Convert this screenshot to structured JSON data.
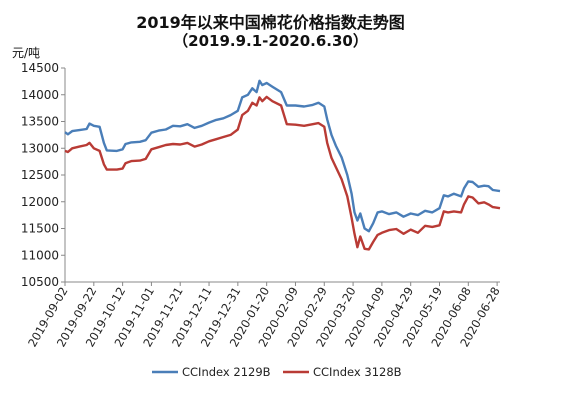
{
  "chart_data": {
    "type": "line",
    "title": "2019年以来中国棉花价格指数走势图",
    "subtitle": "（2019.9.1-2020.6.30）",
    "ylabel": "元/吨",
    "ylim": [
      10500,
      14500
    ],
    "yticks": [
      "10500",
      "11000",
      "11500",
      "12000",
      "12500",
      "13000",
      "13500",
      "14000",
      "14500"
    ],
    "xlim": [
      "2019-09-02",
      "2020-06-30"
    ],
    "xticks": [
      "2019-09-02",
      "2019-09-22",
      "2019-10-12",
      "2019-11-01",
      "2019-11-21",
      "2019-12-11",
      "2019-12-31",
      "2020-01-20",
      "2020-02-09",
      "2020-02-29",
      "2020-03-20",
      "2020-04-09",
      "2020-04-29",
      "2020-05-19",
      "2020-06-08",
      "2020-06-28"
    ],
    "legend_position": "bottom",
    "series": [
      {
        "name": "CCIndex 2129B",
        "color": "#4a7eb8",
        "points": [
          [
            "2019-09-02",
            13300
          ],
          [
            "2019-09-04",
            13260
          ],
          [
            "2019-09-07",
            13320
          ],
          [
            "2019-09-12",
            13340
          ],
          [
            "2019-09-17",
            13360
          ],
          [
            "2019-09-19",
            13460
          ],
          [
            "2019-09-22",
            13420
          ],
          [
            "2019-09-26",
            13400
          ],
          [
            "2019-09-29",
            13100
          ],
          [
            "2019-10-01",
            12960
          ],
          [
            "2019-10-08",
            12950
          ],
          [
            "2019-10-12",
            12980
          ],
          [
            "2019-10-14",
            13080
          ],
          [
            "2019-10-18",
            13110
          ],
          [
            "2019-10-24",
            13120
          ],
          [
            "2019-10-28",
            13150
          ],
          [
            "2019-11-01",
            13290
          ],
          [
            "2019-11-06",
            13330
          ],
          [
            "2019-11-11",
            13350
          ],
          [
            "2019-11-16",
            13420
          ],
          [
            "2019-11-21",
            13410
          ],
          [
            "2019-11-26",
            13450
          ],
          [
            "2019-12-01",
            13380
          ],
          [
            "2019-12-06",
            13420
          ],
          [
            "2019-12-11",
            13480
          ],
          [
            "2019-12-16",
            13530
          ],
          [
            "2019-12-21",
            13560
          ],
          [
            "2019-12-26",
            13620
          ],
          [
            "2019-12-31",
            13700
          ],
          [
            "2020-01-03",
            13950
          ],
          [
            "2020-01-07",
            14000
          ],
          [
            "2020-01-10",
            14120
          ],
          [
            "2020-01-13",
            14050
          ],
          [
            "2020-01-15",
            14260
          ],
          [
            "2020-01-17",
            14180
          ],
          [
            "2020-01-20",
            14220
          ],
          [
            "2020-01-24",
            14150
          ],
          [
            "2020-01-30",
            14050
          ],
          [
            "2020-02-03",
            13800
          ],
          [
            "2020-02-09",
            13800
          ],
          [
            "2020-02-15",
            13780
          ],
          [
            "2020-02-21",
            13810
          ],
          [
            "2020-02-25",
            13850
          ],
          [
            "2020-02-29",
            13780
          ],
          [
            "2020-03-02",
            13540
          ],
          [
            "2020-03-05",
            13250
          ],
          [
            "2020-03-08",
            13050
          ],
          [
            "2020-03-12",
            12830
          ],
          [
            "2020-03-16",
            12500
          ],
          [
            "2020-03-19",
            12150
          ],
          [
            "2020-03-21",
            11800
          ],
          [
            "2020-03-23",
            11650
          ],
          [
            "2020-03-25",
            11780
          ],
          [
            "2020-03-28",
            11500
          ],
          [
            "2020-03-31",
            11450
          ],
          [
            "2020-04-03",
            11600
          ],
          [
            "2020-04-06",
            11800
          ],
          [
            "2020-04-09",
            11820
          ],
          [
            "2020-04-14",
            11770
          ],
          [
            "2020-04-19",
            11800
          ],
          [
            "2020-04-24",
            11720
          ],
          [
            "2020-04-29",
            11780
          ],
          [
            "2020-05-04",
            11750
          ],
          [
            "2020-05-09",
            11830
          ],
          [
            "2020-05-14",
            11800
          ],
          [
            "2020-05-19",
            11880
          ],
          [
            "2020-05-22",
            12120
          ],
          [
            "2020-05-25",
            12100
          ],
          [
            "2020-05-29",
            12150
          ],
          [
            "2020-06-03",
            12100
          ],
          [
            "2020-06-05",
            12250
          ],
          [
            "2020-06-08",
            12380
          ],
          [
            "2020-06-11",
            12370
          ],
          [
            "2020-06-15",
            12280
          ],
          [
            "2020-06-19",
            12300
          ],
          [
            "2020-06-22",
            12290
          ],
          [
            "2020-06-25",
            12220
          ],
          [
            "2020-06-30",
            12200
          ]
        ]
      },
      {
        "name": "CCIndex 3128B",
        "color": "#b93b35",
        "points": [
          [
            "2019-09-02",
            12950
          ],
          [
            "2019-09-04",
            12930
          ],
          [
            "2019-09-07",
            13000
          ],
          [
            "2019-09-12",
            13030
          ],
          [
            "2019-09-17",
            13060
          ],
          [
            "2019-09-19",
            13100
          ],
          [
            "2019-09-22",
            13000
          ],
          [
            "2019-09-26",
            12950
          ],
          [
            "2019-09-29",
            12700
          ],
          [
            "2019-10-01",
            12600
          ],
          [
            "2019-10-08",
            12600
          ],
          [
            "2019-10-12",
            12620
          ],
          [
            "2019-10-14",
            12720
          ],
          [
            "2019-10-18",
            12760
          ],
          [
            "2019-10-24",
            12770
          ],
          [
            "2019-10-28",
            12800
          ],
          [
            "2019-11-01",
            12980
          ],
          [
            "2019-11-06",
            13020
          ],
          [
            "2019-11-11",
            13060
          ],
          [
            "2019-11-16",
            13080
          ],
          [
            "2019-11-21",
            13070
          ],
          [
            "2019-11-26",
            13100
          ],
          [
            "2019-12-01",
            13030
          ],
          [
            "2019-12-06",
            13070
          ],
          [
            "2019-12-11",
            13130
          ],
          [
            "2019-12-16",
            13170
          ],
          [
            "2019-12-21",
            13210
          ],
          [
            "2019-12-26",
            13250
          ],
          [
            "2019-12-31",
            13350
          ],
          [
            "2020-01-03",
            13620
          ],
          [
            "2020-01-07",
            13700
          ],
          [
            "2020-01-10",
            13850
          ],
          [
            "2020-01-13",
            13800
          ],
          [
            "2020-01-15",
            13950
          ],
          [
            "2020-01-17",
            13880
          ],
          [
            "2020-01-20",
            13960
          ],
          [
            "2020-01-24",
            13880
          ],
          [
            "2020-01-30",
            13800
          ],
          [
            "2020-02-03",
            13450
          ],
          [
            "2020-02-09",
            13440
          ],
          [
            "2020-02-15",
            13420
          ],
          [
            "2020-02-21",
            13450
          ],
          [
            "2020-02-25",
            13470
          ],
          [
            "2020-02-29",
            13400
          ],
          [
            "2020-03-02",
            13100
          ],
          [
            "2020-03-05",
            12820
          ],
          [
            "2020-03-08",
            12650
          ],
          [
            "2020-03-12",
            12420
          ],
          [
            "2020-03-16",
            12100
          ],
          [
            "2020-03-19",
            11700
          ],
          [
            "2020-03-21",
            11400
          ],
          [
            "2020-03-23",
            11150
          ],
          [
            "2020-03-25",
            11350
          ],
          [
            "2020-03-28",
            11120
          ],
          [
            "2020-03-31",
            11110
          ],
          [
            "2020-04-03",
            11250
          ],
          [
            "2020-04-06",
            11380
          ],
          [
            "2020-04-09",
            11420
          ],
          [
            "2020-04-14",
            11470
          ],
          [
            "2020-04-19",
            11490
          ],
          [
            "2020-04-24",
            11400
          ],
          [
            "2020-04-29",
            11480
          ],
          [
            "2020-05-04",
            11420
          ],
          [
            "2020-05-09",
            11550
          ],
          [
            "2020-05-14",
            11530
          ],
          [
            "2020-05-19",
            11560
          ],
          [
            "2020-05-22",
            11820
          ],
          [
            "2020-05-25",
            11800
          ],
          [
            "2020-05-29",
            11820
          ],
          [
            "2020-06-03",
            11800
          ],
          [
            "2020-06-05",
            11950
          ],
          [
            "2020-06-08",
            12100
          ],
          [
            "2020-06-11",
            12080
          ],
          [
            "2020-06-15",
            11970
          ],
          [
            "2020-06-19",
            11990
          ],
          [
            "2020-06-22",
            11950
          ],
          [
            "2020-06-25",
            11900
          ],
          [
            "2020-06-30",
            11880
          ]
        ]
      }
    ]
  }
}
